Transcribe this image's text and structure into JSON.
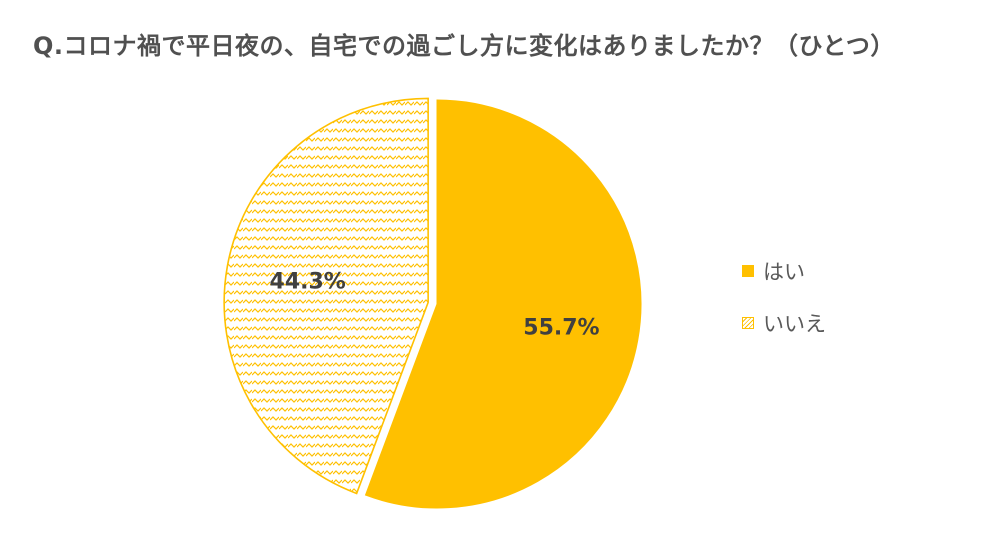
{
  "chart_data": {
    "type": "pie",
    "title": "Q.コロナ禍で平日夜の、自宅での過ごし方に変化はありましたか？（ひとつ）",
    "categories": [
      "はい",
      "いいえ"
    ],
    "values": [
      55.7,
      44.3
    ],
    "value_labels": [
      "55.7%",
      "44.3%"
    ],
    "legend": {
      "position": "right",
      "entries": [
        "はい",
        "いいえ"
      ]
    },
    "start": "top",
    "direction": "clockwise",
    "exploded": [
      "いいえ"
    ],
    "colors": {
      "yes": "#FFC000",
      "no_pattern_fg": "#FFC000",
      "no_pattern_bg": "#FFFFFF",
      "label_text": "#404040",
      "title_text": "#505050",
      "legend_text": "#595959"
    }
  }
}
